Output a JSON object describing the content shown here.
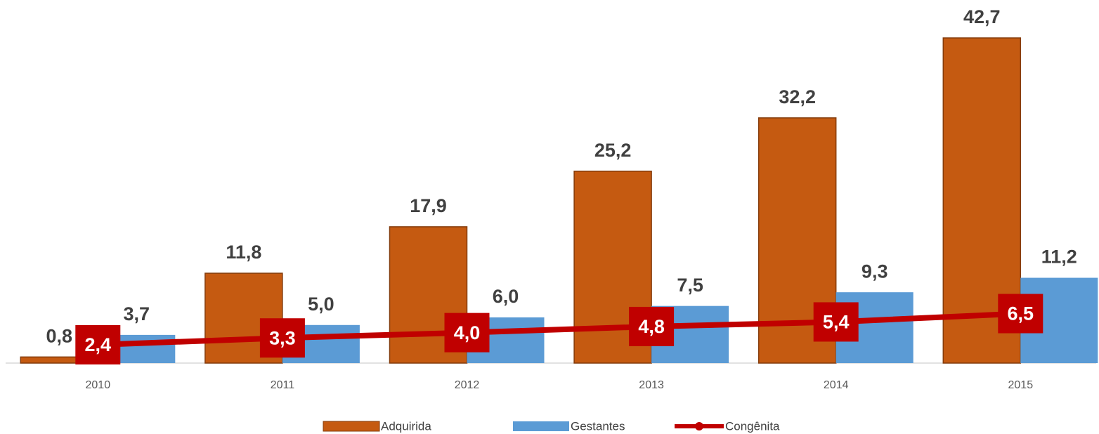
{
  "chart_data": {
    "type": "bar",
    "categories": [
      "2010",
      "2011",
      "2012",
      "2013",
      "2014",
      "2015"
    ],
    "series": [
      {
        "name": "Adquirida",
        "type": "bar",
        "color": "#c55a11",
        "values": [
          0.8,
          11.8,
          17.9,
          25.2,
          32.2,
          42.7
        ],
        "value_labels": [
          "0,8",
          "11,8",
          "17,9",
          "25,2",
          "32,2",
          "42,7"
        ]
      },
      {
        "name": "Gestantes",
        "type": "bar",
        "color": "#5b9bd5",
        "values": [
          3.7,
          5.0,
          6.0,
          7.5,
          9.3,
          11.2
        ],
        "value_labels": [
          "3,7",
          "5,0",
          "6,0",
          "7,5",
          "9,3",
          "11,2"
        ]
      },
      {
        "name": "Congênita",
        "type": "line",
        "color": "#c00000",
        "values": [
          2.4,
          3.3,
          4.0,
          4.8,
          5.4,
          6.5
        ],
        "value_labels": [
          "2,4",
          "3,3",
          "4,0",
          "4,8",
          "5,4",
          "6,5"
        ]
      }
    ],
    "legend": "bottom"
  }
}
